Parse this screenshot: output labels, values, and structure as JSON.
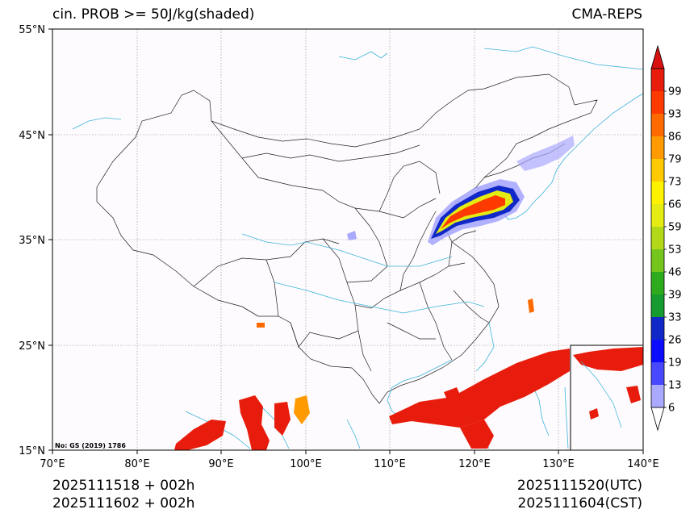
{
  "map": {
    "title_left": "cin. PROB >= 50J/kg(shaded)",
    "title_right": "CMA-REPS",
    "watermark": "No: GS (2019) 1786",
    "init_utc": "2025111518  +  002h",
    "init_cst": "2025111602  +  002h",
    "valid_utc": "2025111520(UTC)",
    "valid_cst": "2025111604(CST)",
    "lon_labels": [
      "70°E",
      "80°E",
      "90°E",
      "100°E",
      "110°E",
      "120°E",
      "130°E",
      "140°E"
    ],
    "lat_labels": [
      "55°N",
      "45°N",
      "35°N",
      "25°N",
      "15°N"
    ]
  },
  "colorbar": {
    "levels": [
      "6",
      "13",
      "19",
      "26",
      "33",
      "39",
      "46",
      "53",
      "59",
      "66",
      "73",
      "79",
      "86",
      "93",
      "99"
    ],
    "colors": [
      "#a9a9ff",
      "#4848ff",
      "#0c0cff",
      "#1028c8",
      "#169b2e",
      "#2eab1d",
      "#74c61d",
      "#b2d918",
      "#e4ec14",
      "#fff200",
      "#ffcb00",
      "#ff9a00",
      "#ff6a00",
      "#ff3a00",
      "#e81c0c"
    ],
    "under_color": "#ffffff",
    "over_color": "#d81010"
  }
}
